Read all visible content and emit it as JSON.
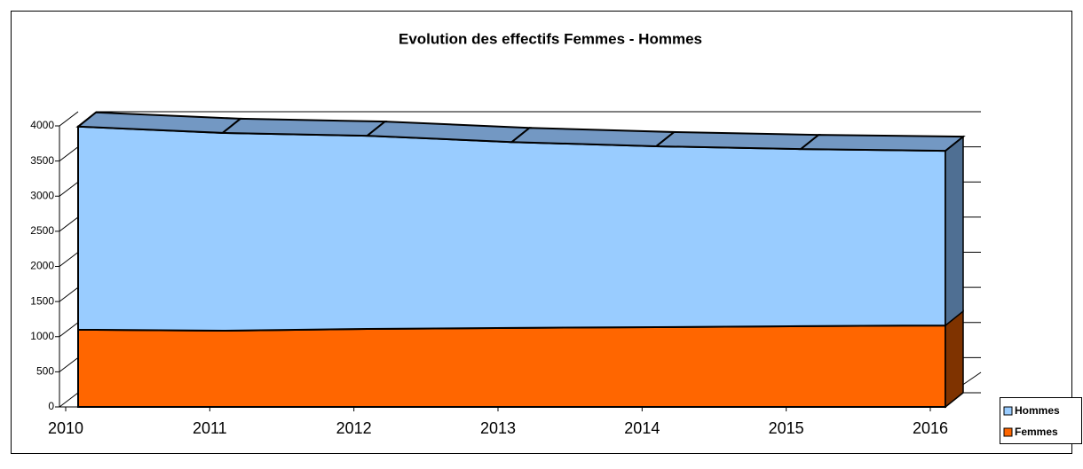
{
  "chart_data": {
    "type": "stacked-area-3d",
    "title": "Evolution des effectifs Femmes - Hommes",
    "categories": [
      "2010",
      "2011",
      "2012",
      "2013",
      "2014",
      "2015",
      "2016"
    ],
    "series": [
      {
        "name": "Femmes",
        "color": "#ff6600",
        "values": [
          1100,
          1085,
          1110,
          1125,
          1135,
          1150,
          1160
        ]
      },
      {
        "name": "Hommes",
        "color": "#99ccff",
        "values": [
          2890,
          2815,
          2750,
          2645,
          2575,
          2520,
          2485
        ]
      }
    ],
    "ylim": [
      0,
      4000
    ],
    "yticks": [
      0,
      500,
      1000,
      1500,
      2000,
      2500,
      3000,
      3500,
      4000
    ]
  }
}
